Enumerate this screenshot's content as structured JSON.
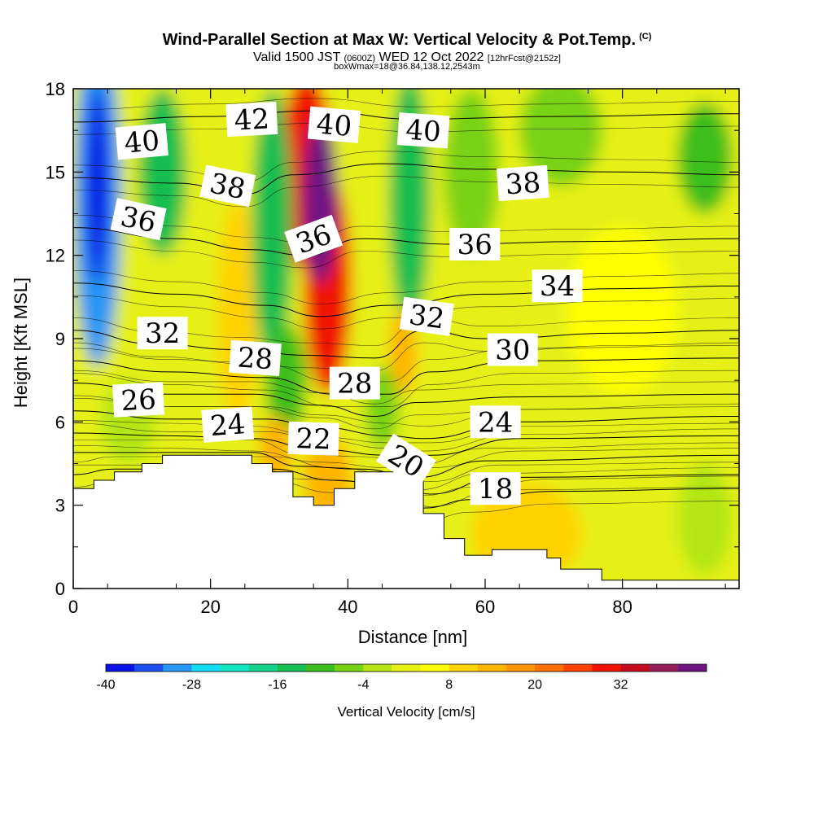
{
  "header": {
    "title": "Wind-Parallel Section at Max W: Vertical Velocity & Pot.Temp.",
    "copyright": "(C)",
    "valid_prefix": "Valid 1500 JST",
    "utc": "(0600Z)",
    "valid_suffix": "WED 12 Oct 2022",
    "forecast": "[12hrFcst@2152z]",
    "box_info": "boxWmax=18@36.84,138.12,2543m"
  },
  "chart_data": {
    "type": "heatmap",
    "xlabel": "Distance [nm]",
    "ylabel": "Height [Kft MSL]",
    "xlim": [
      0,
      97
    ],
    "ylim": [
      0,
      18
    ],
    "x_ticks": [
      0,
      20,
      40,
      60,
      80
    ],
    "y_ticks": [
      0,
      3,
      6,
      9,
      12,
      15,
      18
    ],
    "colorbar": {
      "title": "Vertical Velocity [cm/s]",
      "min": -40,
      "max": 44,
      "step": 4,
      "tick_values": [
        -40,
        -28,
        -16,
        -4,
        8,
        20,
        32
      ],
      "tick_labels": [
        "-40",
        "-28",
        "-16",
        "-4",
        "8",
        "20",
        "32"
      ],
      "colors": [
        "#0a14e6",
        "#1e50f0",
        "#2896f5",
        "#14dcf5",
        "#14e6c3",
        "#14d28c",
        "#14be50",
        "#3cbe1e",
        "#78d214",
        "#b4e614",
        "#e6f014",
        "#ffff00",
        "#ffd200",
        "#ffb400",
        "#ff9600",
        "#ff6e00",
        "#ff4100",
        "#f01400",
        "#c80a1e",
        "#961e5a",
        "#6e1482"
      ]
    },
    "terrain": [
      [
        0,
        3.6
      ],
      [
        3,
        3.6
      ],
      [
        3,
        3.9
      ],
      [
        6,
        3.9
      ],
      [
        6,
        4.2
      ],
      [
        10,
        4.2
      ],
      [
        10,
        4.5
      ],
      [
        13,
        4.5
      ],
      [
        13,
        4.8
      ],
      [
        26,
        4.8
      ],
      [
        26,
        4.5
      ],
      [
        29,
        4.5
      ],
      [
        29,
        4.2
      ],
      [
        32,
        4.2
      ],
      [
        32,
        3.3
      ],
      [
        35,
        3.3
      ],
      [
        35,
        3.0
      ],
      [
        38,
        3.0
      ],
      [
        38,
        3.6
      ],
      [
        41,
        3.6
      ],
      [
        41,
        4.2
      ],
      [
        51,
        4.2
      ],
      [
        51,
        2.7
      ],
      [
        54,
        2.7
      ],
      [
        54,
        1.8
      ],
      [
        57,
        1.8
      ],
      [
        57,
        1.2
      ],
      [
        61,
        1.2
      ],
      [
        61,
        1.4
      ],
      [
        69,
        1.4
      ],
      [
        69,
        1.1
      ],
      [
        71,
        1.1
      ],
      [
        71,
        0.7
      ],
      [
        77,
        0.7
      ],
      [
        77,
        0.3
      ],
      [
        97,
        0.3
      ]
    ],
    "w_field": [
      {
        "x": 3.5,
        "y": 14.0,
        "rx": 3.5,
        "ry": 6.0,
        "v": -30
      },
      {
        "x": 3.5,
        "y": 14.5,
        "rx": 1.8,
        "ry": 3.5,
        "v": -40
      },
      {
        "x": 13.0,
        "y": 15.0,
        "rx": 3.5,
        "ry": 3.0,
        "v": -14
      },
      {
        "x": 24.0,
        "y": 10.0,
        "rx": 3.0,
        "ry": 4.0,
        "v": 8
      },
      {
        "x": 34.0,
        "y": 15.0,
        "rx": 4.0,
        "ry": 3.5,
        "v": 30
      },
      {
        "x": 37.0,
        "y": 11.0,
        "rx": 3.5,
        "ry": 4.0,
        "v": 28
      },
      {
        "x": 36.0,
        "y": 14.0,
        "rx": 2.5,
        "ry": 3.0,
        "v": 40
      },
      {
        "x": 29.0,
        "y": 13.0,
        "rx": 3.0,
        "ry": 5.0,
        "v": -14
      },
      {
        "x": 31.0,
        "y": 7.5,
        "rx": 3.0,
        "ry": 2.0,
        "v": -10
      },
      {
        "x": 49.0,
        "y": 14.0,
        "rx": 3.0,
        "ry": 4.5,
        "v": -14
      },
      {
        "x": 48.0,
        "y": 8.5,
        "rx": 2.0,
        "ry": 1.5,
        "v": 14
      },
      {
        "x": 58.0,
        "y": 15.0,
        "rx": 4.0,
        "ry": 3.0,
        "v": -8
      },
      {
        "x": 71.0,
        "y": 16.5,
        "rx": 6.0,
        "ry": 2.0,
        "v": -8
      },
      {
        "x": 92.0,
        "y": 15.5,
        "rx": 4.0,
        "ry": 2.0,
        "v": -10
      },
      {
        "x": 80.0,
        "y": 10.0,
        "rx": 8.0,
        "ry": 3.0,
        "v": 6
      },
      {
        "x": 66.0,
        "y": 2.0,
        "rx": 8.0,
        "ry": 1.8,
        "v": 10
      },
      {
        "x": 37.0,
        "y": 4.0,
        "rx": 3.5,
        "ry": 1.5,
        "v": 12
      },
      {
        "x": 29.5,
        "y": 5.0,
        "rx": 2.5,
        "ry": 1.2,
        "v": 12
      },
      {
        "x": 8.0,
        "y": 6.0,
        "rx": 4.0,
        "ry": 1.5,
        "v": -2
      },
      {
        "x": 45.0,
        "y": 6.5,
        "rx": 2.5,
        "ry": 1.5,
        "v": -8
      },
      {
        "x": 92.0,
        "y": 2.5,
        "rx": 4.0,
        "ry": 2.0,
        "v": -4
      }
    ],
    "theta_lines": [
      {
        "value": 40,
        "points": [
          [
            0,
            16.8
          ],
          [
            20,
            17.0
          ],
          [
            35,
            17.2
          ],
          [
            50,
            16.9
          ],
          [
            70,
            17.0
          ],
          [
            97,
            17.1
          ]
        ]
      },
      {
        "value": 38,
        "points": [
          [
            0,
            14.8
          ],
          [
            15,
            14.6
          ],
          [
            25,
            14.2
          ],
          [
            32,
            14.9
          ],
          [
            45,
            15.3
          ],
          [
            60,
            15.1
          ],
          [
            80,
            15.0
          ],
          [
            97,
            14.9
          ]
        ]
      },
      {
        "value": 36,
        "points": [
          [
            0,
            13.0
          ],
          [
            15,
            12.6
          ],
          [
            26,
            12.2
          ],
          [
            34,
            12.0
          ],
          [
            42,
            12.6
          ],
          [
            55,
            12.4
          ],
          [
            75,
            12.5
          ],
          [
            97,
            12.6
          ]
        ]
      },
      {
        "value": 34,
        "points": [
          [
            0,
            11.0
          ],
          [
            15,
            10.6
          ],
          [
            28,
            10.2
          ],
          [
            36,
            9.8
          ],
          [
            46,
            10.2
          ],
          [
            60,
            10.6
          ],
          [
            80,
            10.8
          ],
          [
            97,
            10.9
          ]
        ]
      },
      {
        "value": 32,
        "points": [
          [
            0,
            9.3
          ],
          [
            12,
            8.8
          ],
          [
            24,
            8.6
          ],
          [
            34,
            8.4
          ],
          [
            44,
            8.3
          ],
          [
            51,
            9.3
          ],
          [
            60,
            9.0
          ],
          [
            80,
            9.2
          ],
          [
            97,
            9.3
          ]
        ]
      },
      {
        "value": 30,
        "points": [
          [
            0,
            8.2
          ],
          [
            14,
            7.8
          ],
          [
            28,
            7.6
          ],
          [
            38,
            7.0
          ],
          [
            46,
            7.0
          ],
          [
            52,
            7.8
          ],
          [
            65,
            8.2
          ],
          [
            97,
            8.3
          ]
        ]
      },
      {
        "value": 28,
        "points": [
          [
            0,
            7.4
          ],
          [
            14,
            7.0
          ],
          [
            26,
            7.0
          ],
          [
            36,
            6.6
          ],
          [
            44,
            6.2
          ],
          [
            50,
            6.7
          ],
          [
            65,
            6.9
          ],
          [
            97,
            7.0
          ]
        ]
      },
      {
        "value": 26,
        "points": [
          [
            0,
            6.4
          ],
          [
            14,
            6.1
          ],
          [
            28,
            6.1
          ],
          [
            36,
            5.8
          ],
          [
            46,
            5.5
          ],
          [
            51,
            5.4
          ],
          [
            65,
            6.0
          ],
          [
            97,
            6.2
          ]
        ]
      },
      {
        "value": 24,
        "points": [
          [
            0,
            5.6
          ],
          [
            14,
            5.5
          ],
          [
            26,
            5.4
          ],
          [
            36,
            5.0
          ],
          [
            46,
            4.8
          ],
          [
            52,
            4.8
          ],
          [
            65,
            5.4
          ],
          [
            97,
            5.5
          ]
        ]
      },
      {
        "value": 22,
        "points": [
          [
            0,
            4.9
          ],
          [
            10,
            4.9
          ],
          [
            26,
            4.9
          ],
          [
            33,
            4.4
          ],
          [
            42,
            4.3
          ],
          [
            50,
            4.0
          ],
          [
            60,
            4.6
          ],
          [
            97,
            4.8
          ]
        ]
      },
      {
        "value": 20,
        "points": [
          [
            0,
            4.1
          ],
          [
            6,
            4.3
          ],
          [
            29,
            4.3
          ],
          [
            38,
            3.9
          ],
          [
            48,
            3.6
          ],
          [
            52,
            3.4
          ],
          [
            62,
            4.0
          ],
          [
            97,
            4.1
          ]
        ]
      },
      {
        "value": 18,
        "points": [
          [
            51,
            2.9
          ],
          [
            58,
            3.2
          ],
          [
            70,
            3.5
          ],
          [
            97,
            3.6
          ]
        ]
      }
    ],
    "theta_labels": [
      {
        "text": "40",
        "x": 10.0,
        "y": 16.1,
        "rot": -5
      },
      {
        "text": "42",
        "x": 26.0,
        "y": 16.9,
        "rot": -3
      },
      {
        "text": "40",
        "x": 38.0,
        "y": 16.7,
        "rot": 5
      },
      {
        "text": "40",
        "x": 51.0,
        "y": 16.5,
        "rot": 4
      },
      {
        "text": "38",
        "x": 22.5,
        "y": 14.5,
        "rot": 12
      },
      {
        "text": "38",
        "x": 65.5,
        "y": 14.6,
        "rot": -4
      },
      {
        "text": "36",
        "x": 9.5,
        "y": 13.3,
        "rot": 12
      },
      {
        "text": "36",
        "x": 35.0,
        "y": 12.6,
        "rot": -20
      },
      {
        "text": "36",
        "x": 58.5,
        "y": 12.4,
        "rot": 0
      },
      {
        "text": "34",
        "x": 70.5,
        "y": 10.9,
        "rot": 0
      },
      {
        "text": "32",
        "x": 13.0,
        "y": 9.2,
        "rot": 0
      },
      {
        "text": "32",
        "x": 51.5,
        "y": 9.8,
        "rot": 8
      },
      {
        "text": "30",
        "x": 64.0,
        "y": 8.6,
        "rot": 0
      },
      {
        "text": "28",
        "x": 26.5,
        "y": 8.3,
        "rot": 4
      },
      {
        "text": "28",
        "x": 41.0,
        "y": 7.4,
        "rot": 0
      },
      {
        "text": "26",
        "x": 9.5,
        "y": 6.8,
        "rot": -3
      },
      {
        "text": "24",
        "x": 22.5,
        "y": 5.9,
        "rot": -4
      },
      {
        "text": "24",
        "x": 61.5,
        "y": 6.0,
        "rot": 0
      },
      {
        "text": "22",
        "x": 35.0,
        "y": 5.4,
        "rot": 2
      },
      {
        "text": "20",
        "x": 48.5,
        "y": 4.6,
        "rot": 32
      },
      {
        "text": "18",
        "x": 61.5,
        "y": 3.6,
        "rot": 0
      }
    ]
  }
}
